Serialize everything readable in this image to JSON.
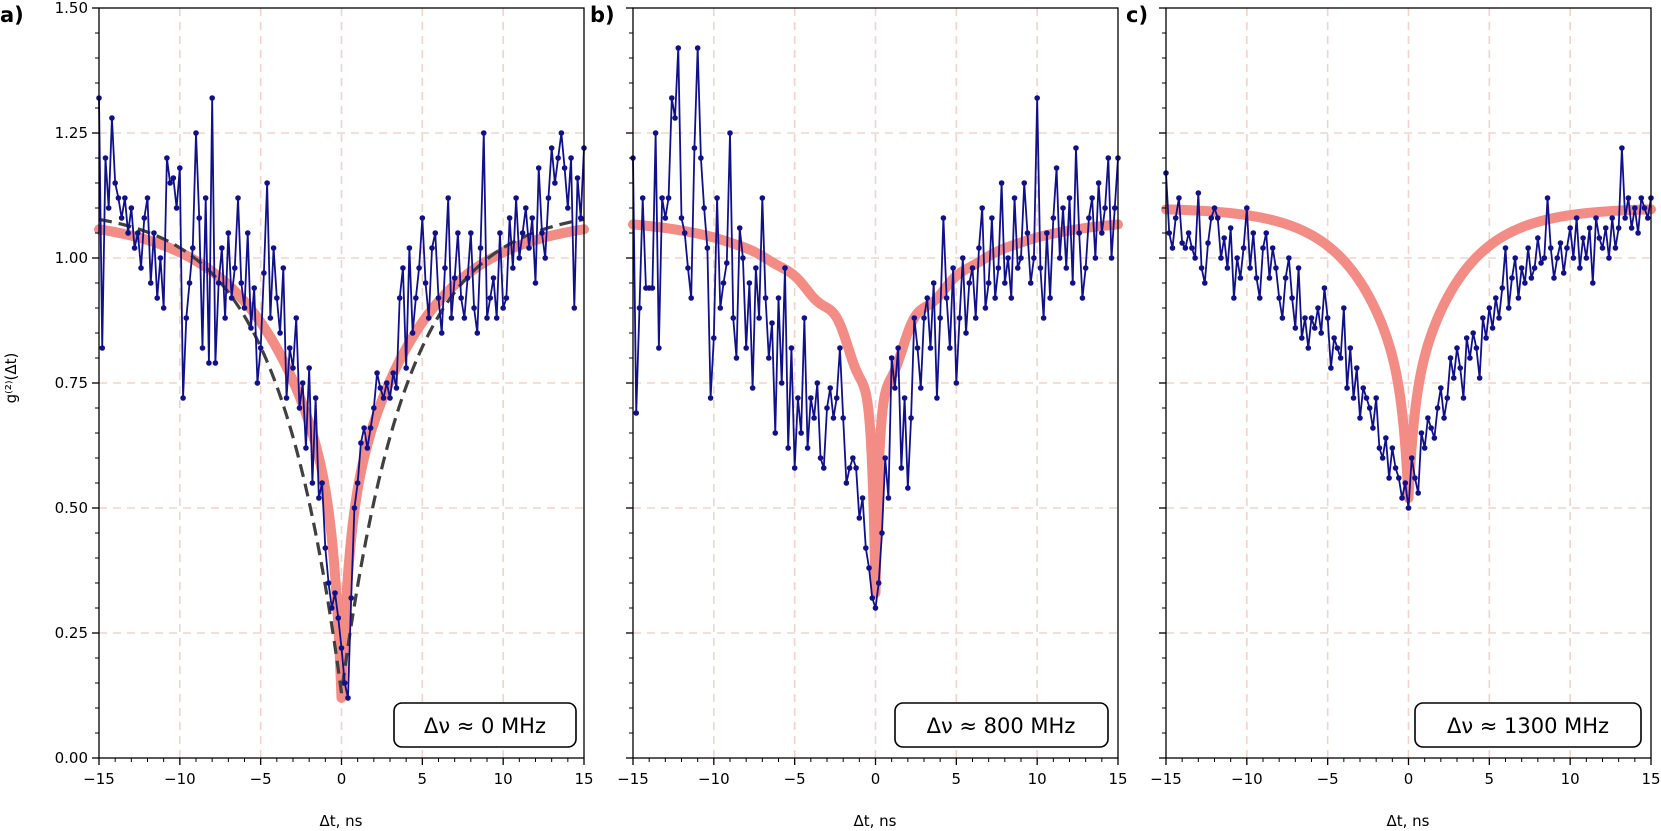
{
  "ylabel": "g⁽²⁾(Δt)",
  "colors": {
    "data": "#10108a",
    "fit": "#f28c84",
    "model": "#404040",
    "grid": "#efd3cc",
    "axis": "#000000"
  },
  "chart_data": [
    {
      "type": "line",
      "panel_label": "a)",
      "annotation": "Δν ≈ 0 MHz",
      "xlabel": "Δt, ns",
      "ylabel": "g⁽²⁾(Δt)",
      "xlim": [
        -15,
        15
      ],
      "ylim": [
        0,
        1.5
      ],
      "xticks": [
        -15,
        -10,
        -5,
        0,
        5,
        10,
        15
      ],
      "xtick_labels": [
        "−15",
        "−10",
        "−5",
        "0",
        "5",
        "10",
        "15"
      ],
      "yticks": [
        0,
        0.25,
        0.5,
        0.75,
        1.0,
        1.25,
        1.5
      ],
      "ytick_labels": [
        "0.00",
        "0.25",
        "0.50",
        "0.75",
        "1.00",
        "1.25",
        "1.50"
      ],
      "grid": true,
      "series": [
        {
          "style": "markers+line",
          "x": [
            -15,
            -14.8,
            -14.6,
            -14.4,
            -14.2,
            -14,
            -13.8,
            -13.6,
            -13.4,
            -13.2,
            -13,
            -12.8,
            -12.6,
            -12.4,
            -12.2,
            -12,
            -11.8,
            -11.6,
            -11.4,
            -11.2,
            -11,
            -10.8,
            -10.6,
            -10.4,
            -10.2,
            -10,
            -9.8,
            -9.6,
            -9.4,
            -9.2,
            -9,
            -8.8,
            -8.6,
            -8.4,
            -8.2,
            -8,
            -7.8,
            -7.6,
            -7.4,
            -7.2,
            -7,
            -6.8,
            -6.6,
            -6.4,
            -6.2,
            -6,
            -5.8,
            -5.6,
            -5.4,
            -5.2,
            -5,
            -4.8,
            -4.6,
            -4.4,
            -4.2,
            -4,
            -3.8,
            -3.6,
            -3.4,
            -3.2,
            -3,
            -2.8,
            -2.6,
            -2.4,
            -2.2,
            -2,
            -1.8,
            -1.6,
            -1.4,
            -1.2,
            -1,
            -0.8,
            -0.6,
            -0.4,
            -0.2,
            0,
            0.2,
            0.4,
            0.6,
            0.8,
            1,
            1.2,
            1.4,
            1.6,
            1.8,
            2,
            2.2,
            2.4,
            2.6,
            2.8,
            3,
            3.2,
            3.4,
            3.6,
            3.8,
            4,
            4.2,
            4.4,
            4.6,
            4.8,
            5,
            5.2,
            5.4,
            5.6,
            5.8,
            6,
            6.2,
            6.4,
            6.6,
            6.8,
            7,
            7.2,
            7.4,
            7.6,
            7.8,
            8,
            8.2,
            8.4,
            8.6,
            8.8,
            9,
            9.2,
            9.4,
            9.6,
            9.8,
            10,
            10.2,
            10.4,
            10.6,
            10.8,
            11,
            11.2,
            11.4,
            11.6,
            11.8,
            12,
            12.2,
            12.4,
            12.6,
            12.8,
            13,
            13.2,
            13.4,
            13.6,
            13.8,
            14,
            14.2,
            14.4,
            14.6,
            14.8,
            15
          ],
          "y": [
            1.32,
            0.82,
            1.2,
            1.1,
            1.28,
            1.15,
            1.12,
            1.08,
            1.12,
            1.05,
            1.1,
            1.02,
            1.05,
            0.98,
            1.08,
            1.12,
            0.95,
            1.05,
            0.92,
            1.0,
            0.9,
            1.2,
            1.15,
            1.16,
            1.1,
            1.18,
            0.72,
            0.88,
            0.95,
            1.02,
            1.25,
            1.08,
            0.82,
            1.12,
            0.79,
            1.32,
            0.79,
            0.95,
            1.02,
            0.88,
            1.05,
            0.92,
            0.98,
            1.12,
            0.95,
            0.9,
            1.05,
            0.86,
            0.94,
            0.75,
            0.82,
            0.97,
            1.15,
            0.88,
            1.02,
            0.92,
            0.85,
            0.98,
            0.72,
            0.82,
            0.78,
            0.88,
            0.7,
            0.75,
            0.62,
            0.78,
            0.55,
            0.72,
            0.52,
            0.55,
            0.42,
            0.35,
            0.3,
            0.33,
            0.28,
            0.22,
            0.15,
            0.12,
            0.32,
            0.5,
            0.55,
            0.63,
            0.66,
            0.62,
            0.66,
            0.7,
            0.77,
            0.74,
            0.72,
            0.75,
            0.72,
            0.77,
            0.74,
            0.92,
            0.98,
            0.78,
            1.02,
            0.85,
            0.92,
            0.98,
            1.08,
            0.95,
            0.88,
            1.02,
            1.05,
            0.92,
            0.85,
            0.98,
            1.12,
            0.88,
            0.96,
            1.05,
            0.92,
            0.88,
            0.96,
            1.05,
            0.9,
            0.85,
            1.02,
            1.25,
            0.88,
            0.92,
            0.96,
            0.88,
            1.05,
            0.9,
            0.92,
            1.08,
            0.98,
            1.12,
            1.0,
            1.05,
            1.1,
            1.02,
            1.08,
            0.95,
            1.18,
            1.05,
            1.0,
            1.12,
            1.22,
            1.15,
            1.2,
            1.25,
            1.18,
            1.1,
            1.2,
            0.9,
            1.16,
            1.08,
            1.22
          ]
        },
        {
          "style": "fit",
          "kind": "computed",
          "params": {
            "baseline": 1.08,
            "dip": 0.96,
            "sharp": 0.34,
            "tau_sharp": 0.45,
            "tau_broad": 4.5
          }
        },
        {
          "style": "model",
          "kind": "computed",
          "params": {
            "baseline": 1.1,
            "dip": 0.97,
            "tau": 4.0
          }
        }
      ]
    },
    {
      "type": "line",
      "panel_label": "b)",
      "annotation": "Δν ≈ 800 MHz",
      "xlabel": "Δt, ns",
      "xlim": [
        -15,
        15
      ],
      "ylim": [
        0,
        1.5
      ],
      "xticks": [
        -15,
        -10,
        -5,
        0,
        5,
        10,
        15
      ],
      "xtick_labels": [
        "−15",
        "−10",
        "−5",
        "0",
        "5",
        "10",
        "15"
      ],
      "yticks": [
        0,
        0.25,
        0.5,
        0.75,
        1.0,
        1.25,
        1.5
      ],
      "grid": true,
      "series": [
        {
          "style": "markers+line",
          "x": [
            -15,
            -14.8,
            -14.6,
            -14.4,
            -14.2,
            -14,
            -13.8,
            -13.6,
            -13.4,
            -13.2,
            -13,
            -12.8,
            -12.6,
            -12.4,
            -12.2,
            -12,
            -11.8,
            -11.6,
            -11.4,
            -11.2,
            -11,
            -10.8,
            -10.6,
            -10.4,
            -10.2,
            -10,
            -9.8,
            -9.6,
            -9.4,
            -9.2,
            -9,
            -8.8,
            -8.6,
            -8.4,
            -8.2,
            -8,
            -7.8,
            -7.6,
            -7.4,
            -7.2,
            -7,
            -6.8,
            -6.6,
            -6.4,
            -6.2,
            -6,
            -5.8,
            -5.6,
            -5.4,
            -5.2,
            -5,
            -4.8,
            -4.6,
            -4.4,
            -4.2,
            -4,
            -3.8,
            -3.6,
            -3.4,
            -3.2,
            -3,
            -2.8,
            -2.6,
            -2.4,
            -2.2,
            -2,
            -1.8,
            -1.6,
            -1.4,
            -1.2,
            -1,
            -0.8,
            -0.6,
            -0.4,
            -0.2,
            0,
            0.2,
            0.4,
            0.6,
            0.8,
            1,
            1.2,
            1.4,
            1.6,
            1.8,
            2,
            2.2,
            2.4,
            2.6,
            2.8,
            3,
            3.2,
            3.4,
            3.6,
            3.8,
            4,
            4.2,
            4.4,
            4.6,
            4.8,
            5,
            5.2,
            5.4,
            5.6,
            5.8,
            6,
            6.2,
            6.4,
            6.6,
            6.8,
            7,
            7.2,
            7.4,
            7.6,
            7.8,
            8,
            8.2,
            8.4,
            8.6,
            8.8,
            9,
            9.2,
            9.4,
            9.6,
            9.8,
            10,
            10.2,
            10.4,
            10.6,
            10.8,
            11,
            11.2,
            11.4,
            11.6,
            11.8,
            12,
            12.2,
            12.4,
            12.6,
            12.8,
            13,
            13.2,
            13.4,
            13.6,
            13.8,
            14,
            14.2,
            14.4,
            14.6,
            14.8,
            15
          ],
          "y": [
            1.2,
            0.69,
            0.9,
            1.12,
            0.94,
            0.94,
            0.94,
            1.25,
            0.82,
            1.12,
            1.08,
            1.12,
            1.32,
            1.28,
            1.42,
            1.08,
            1.05,
            0.98,
            0.92,
            1.22,
            1.42,
            1.2,
            1.1,
            1.02,
            0.72,
            0.84,
            1.12,
            0.9,
            0.95,
            0.99,
            1.25,
            0.88,
            0.8,
            1.06,
            1.0,
            0.82,
            0.95,
            0.74,
            0.98,
            0.88,
            1.12,
            0.92,
            0.8,
            0.87,
            0.65,
            0.92,
            0.75,
            0.98,
            0.62,
            0.82,
            0.58,
            0.72,
            0.65,
            0.88,
            0.62,
            0.72,
            0.68,
            0.75,
            0.6,
            0.58,
            0.7,
            0.74,
            0.68,
            0.72,
            0.82,
            0.68,
            0.55,
            0.58,
            0.6,
            0.58,
            0.48,
            0.52,
            0.42,
            0.38,
            0.32,
            0.3,
            0.35,
            0.45,
            0.6,
            0.52,
            0.8,
            0.74,
            0.82,
            0.58,
            0.72,
            0.54,
            0.68,
            0.88,
            0.82,
            0.74,
            0.88,
            0.92,
            0.82,
            0.95,
            0.72,
            0.88,
            1.08,
            0.92,
            0.82,
            0.98,
            0.75,
            0.88,
            1.0,
            0.85,
            0.95,
            0.98,
            0.88,
            1.02,
            1.1,
            0.9,
            0.95,
            1.08,
            0.92,
            0.98,
            1.15,
            0.95,
            1.0,
            0.92,
            1.12,
            0.98,
            1.0,
            1.15,
            1.05,
            0.95,
            1.0,
            1.32,
            0.98,
            0.88,
            1.05,
            0.92,
            1.08,
            1.18,
            1.0,
            1.1,
            0.98,
            1.12,
            0.95,
            1.22,
            1.05,
            0.92,
            0.98,
            1.08,
            1.12,
            1.0,
            1.15,
            1.05,
            1.1,
            1.2,
            1.0,
            1.1,
            1.2
          ]
        },
        {
          "style": "fit",
          "kind": "computed",
          "params": {
            "baseline": 1.08,
            "broad": 0.36,
            "tau_broad": 4.5,
            "sharp": 0.44,
            "tau_sharp": 0.25,
            "osc_amp": 0.1,
            "osc_period": 2.6
          }
        }
      ]
    },
    {
      "type": "line",
      "panel_label": "c)",
      "annotation": "Δν ≈ 1300 MHz",
      "xlabel": "Δt, ns",
      "xlim": [
        -15,
        15
      ],
      "ylim": [
        0,
        1.5
      ],
      "xticks": [
        -15,
        -10,
        -5,
        0,
        5,
        10,
        15
      ],
      "xtick_labels": [
        "−15",
        "−10",
        "−5",
        "0",
        "5",
        "10",
        "15"
      ],
      "yticks": [
        0,
        0.25,
        0.5,
        0.75,
        1.0,
        1.25,
        1.5
      ],
      "grid": true,
      "series": [
        {
          "style": "markers+line",
          "x": [
            -15,
            -14.8,
            -14.6,
            -14.4,
            -14.2,
            -14,
            -13.8,
            -13.6,
            -13.4,
            -13.2,
            -13,
            -12.8,
            -12.6,
            -12.4,
            -12.2,
            -12,
            -11.8,
            -11.6,
            -11.4,
            -11.2,
            -11,
            -10.8,
            -10.6,
            -10.4,
            -10.2,
            -10,
            -9.8,
            -9.6,
            -9.4,
            -9.2,
            -9,
            -8.8,
            -8.6,
            -8.4,
            -8.2,
            -8,
            -7.8,
            -7.6,
            -7.4,
            -7.2,
            -7,
            -6.8,
            -6.6,
            -6.4,
            -6.2,
            -6,
            -5.8,
            -5.6,
            -5.4,
            -5.2,
            -5,
            -4.8,
            -4.6,
            -4.4,
            -4.2,
            -4,
            -3.8,
            -3.6,
            -3.4,
            -3.2,
            -3,
            -2.8,
            -2.6,
            -2.4,
            -2.2,
            -2,
            -1.8,
            -1.6,
            -1.4,
            -1.2,
            -1,
            -0.8,
            -0.6,
            -0.4,
            -0.2,
            0,
            0.2,
            0.4,
            0.6,
            0.8,
            1,
            1.2,
            1.4,
            1.6,
            1.8,
            2,
            2.2,
            2.4,
            2.6,
            2.8,
            3,
            3.2,
            3.4,
            3.6,
            3.8,
            4,
            4.2,
            4.4,
            4.6,
            4.8,
            5,
            5.2,
            5.4,
            5.6,
            5.8,
            6,
            6.2,
            6.4,
            6.6,
            6.8,
            7,
            7.2,
            7.4,
            7.6,
            7.8,
            8,
            8.2,
            8.4,
            8.6,
            8.8,
            9,
            9.2,
            9.4,
            9.6,
            9.8,
            10,
            10.2,
            10.4,
            10.6,
            10.8,
            11,
            11.2,
            11.4,
            11.6,
            11.8,
            12,
            12.2,
            12.4,
            12.6,
            12.8,
            13,
            13.2,
            13.4,
            13.6,
            13.8,
            14,
            14.2,
            14.4,
            14.6,
            14.8,
            15
          ],
          "y": [
            1.17,
            1.05,
            1.02,
            1.08,
            1.12,
            1.03,
            1.02,
            1.05,
            1.02,
            1.0,
            1.13,
            0.98,
            0.95,
            1.03,
            1.08,
            1.1,
            1.08,
            1.0,
            1.04,
            0.98,
            1.06,
            0.92,
            1.0,
            0.96,
            1.02,
            1.1,
            0.98,
            1.05,
            0.96,
            0.92,
            1.02,
            1.05,
            0.96,
            1.02,
            0.98,
            0.92,
            0.88,
            0.96,
            1.0,
            0.92,
            0.86,
            0.98,
            0.84,
            0.88,
            0.82,
            0.88,
            0.86,
            0.9,
            0.85,
            0.94,
            0.88,
            0.78,
            0.84,
            0.82,
            0.8,
            0.9,
            0.74,
            0.82,
            0.72,
            0.78,
            0.68,
            0.74,
            0.72,
            0.7,
            0.66,
            0.72,
            0.62,
            0.6,
            0.64,
            0.56,
            0.62,
            0.58,
            0.56,
            0.52,
            0.55,
            0.5,
            0.6,
            0.56,
            0.53,
            0.65,
            0.62,
            0.68,
            0.66,
            0.64,
            0.7,
            0.74,
            0.68,
            0.72,
            0.8,
            0.76,
            0.82,
            0.78,
            0.72,
            0.84,
            0.8,
            0.85,
            0.82,
            0.76,
            0.88,
            0.84,
            0.9,
            0.86,
            0.92,
            0.88,
            0.94,
            1.02,
            0.9,
            0.96,
            1.0,
            0.92,
            0.98,
            0.95,
            1.02,
            0.96,
            0.98,
            1.04,
            0.99,
            1.0,
            1.12,
            1.02,
            0.96,
            1.0,
            1.03,
            0.97,
            1.02,
            1.06,
            1.0,
            1.08,
            0.98,
            1.04,
            1.0,
            1.06,
            0.95,
            1.08,
            1.04,
            1.02,
            1.06,
            1.0,
            1.08,
            1.02,
            1.06,
            1.22,
            1.08,
            1.12,
            1.06,
            1.1,
            1.05,
            1.12,
            1.1,
            1.08,
            1.12
          ]
        },
        {
          "style": "fit",
          "kind": "computed",
          "params": {
            "baseline": 1.1,
            "dip": 0.4,
            "tau": 3.0,
            "sharp": 0.18,
            "tau_sharp": 0.35
          }
        }
      ]
    }
  ]
}
